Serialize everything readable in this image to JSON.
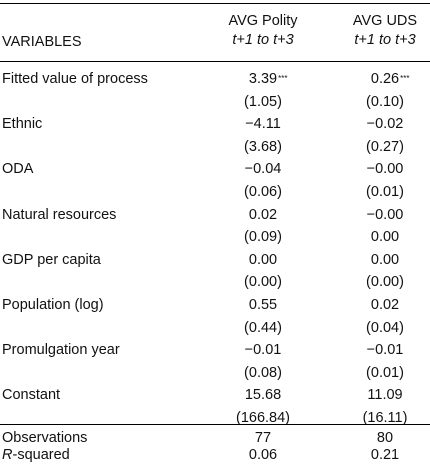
{
  "header": {
    "variables_label": "VARIABLES",
    "col1_title": "AVG Polity",
    "col2_title": "AVG UDS",
    "col1_sub": "t+1 to t+3",
    "col2_sub": "t+1 to t+3"
  },
  "rows": [
    {
      "label": "Fitted value of process",
      "c1": "3.39",
      "c1_stars": "***",
      "c2": "0.26",
      "c2_stars": "***"
    },
    {
      "label": "",
      "c1": "(1.05)",
      "c2": "(0.10)"
    },
    {
      "label": "Ethnic",
      "c1": "−4.11",
      "c2": "−0.02"
    },
    {
      "label": "",
      "c1": "(3.68)",
      "c2": "(0.27)"
    },
    {
      "label": "ODA",
      "c1": "−0.04",
      "c2": "−0.00"
    },
    {
      "label": "",
      "c1": "(0.06)",
      "c2": "(0.01)"
    },
    {
      "label": "Natural resources",
      "c1": "0.02",
      "c2": "−0.00"
    },
    {
      "label": "",
      "c1": "(0.09)",
      "c2": "0.00"
    },
    {
      "label": "GDP per capita",
      "c1": "0.00",
      "c2": "0.00"
    },
    {
      "label": "",
      "c1": "(0.00)",
      "c2": "(0.00)"
    },
    {
      "label": "Population (log)",
      "c1": "0.55",
      "c2": "0.02"
    },
    {
      "label": "",
      "c1": "(0.44)",
      "c2": "(0.04)"
    },
    {
      "label": "Promulgation year",
      "c1": "−0.01",
      "c2": "−0.01"
    },
    {
      "label": "",
      "c1": "(0.08)",
      "c2": "(0.01)"
    },
    {
      "label": "Constant",
      "c1": "15.68",
      "c2": "11.09"
    },
    {
      "label": "",
      "c1": "(166.84)",
      "c2": "(16.11)"
    },
    {
      "label": "Observations",
      "c1": "77",
      "c2": "80"
    },
    {
      "label": "R-squared",
      "label_italic_part": "R",
      "label_rest": "-squared",
      "c1": "0.06",
      "c2": "0.21"
    }
  ]
}
